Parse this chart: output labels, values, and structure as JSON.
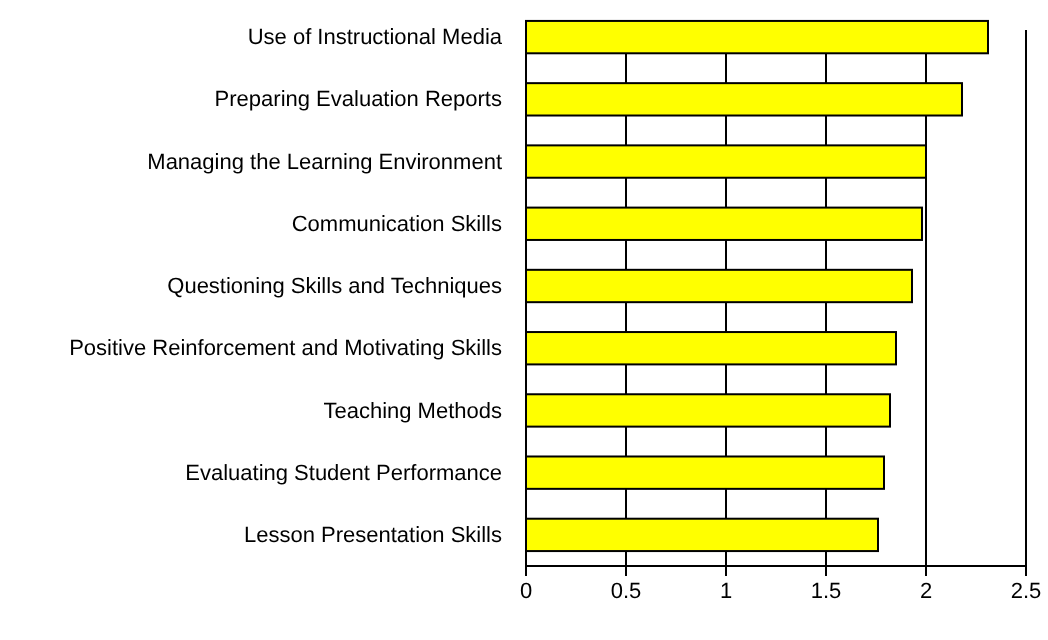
{
  "chart_data": {
    "type": "bar",
    "orientation": "horizontal",
    "categories": [
      "Use of Instructional Media",
      "Preparing Evaluation Reports",
      "Managing the Learning Environment",
      "Communication Skills",
      "Questioning Skills and Techniques",
      "Positive Reinforcement and Motivating Skills",
      "Teaching Methods",
      "Evaluating Student Performance",
      "Lesson Presentation Skills"
    ],
    "values": [
      2.31,
      2.18,
      2.0,
      1.98,
      1.93,
      1.85,
      1.82,
      1.79,
      1.76
    ],
    "color": "#ffff00",
    "xlim": [
      0,
      2.5
    ],
    "xticks": [
      0,
      0.5,
      1,
      1.5,
      2,
      2.5
    ],
    "grid": "x"
  }
}
